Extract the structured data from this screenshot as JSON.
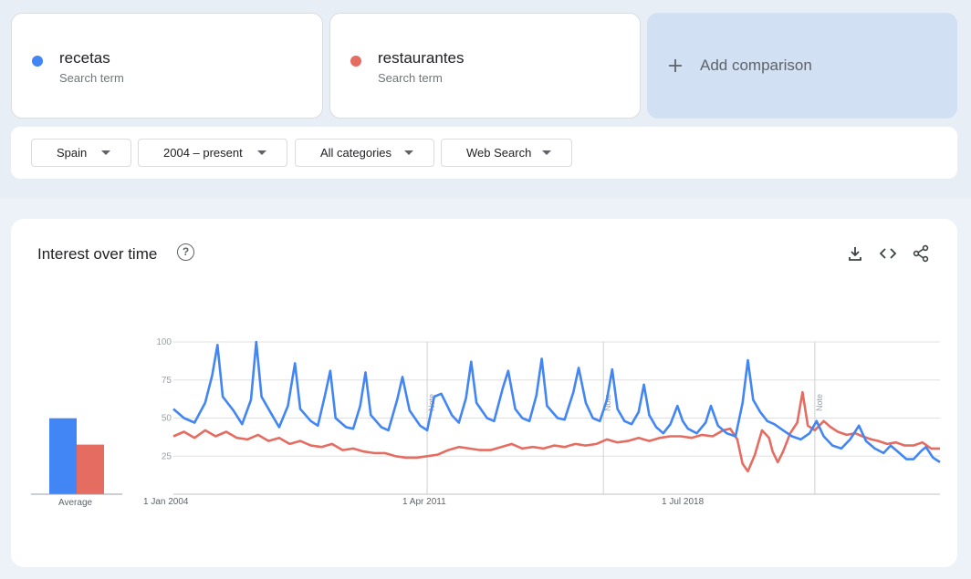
{
  "terms": [
    {
      "name": "recetas",
      "subtitle": "Search term",
      "color": "#4285f4"
    },
    {
      "name": "restaurantes",
      "subtitle": "Search term",
      "color": "#e56c61"
    }
  ],
  "add_comparison": {
    "icon": "plus-icon",
    "label": "Add comparison"
  },
  "filters": {
    "region": "Spain",
    "time_range": "2004 – present",
    "category": "All categories",
    "search_type": "Web Search"
  },
  "panel": {
    "title": "Interest over time",
    "icons": [
      "help-icon",
      "download-icon",
      "embed-code-icon",
      "share-icon"
    ],
    "average_label": "Average",
    "note_label": "Note"
  },
  "chart_data": {
    "type": "line",
    "title": "Interest over time",
    "xlabel": "",
    "ylabel": "",
    "ylim": [
      0,
      100
    ],
    "yticks": [
      25,
      50,
      75,
      100
    ],
    "xlim": [
      2004.0,
      2025.75
    ],
    "xtick_labels": [
      "1 Jan 2004",
      "1 Apr 2011",
      "1 Jul 2018"
    ],
    "xtick_positions": [
      2004.0,
      2011.25,
      2018.5
    ],
    "note_markers": [
      2011.2,
      2016.2,
      2022.2
    ],
    "grid": true,
    "legend": "none",
    "averages": [
      {
        "name": "recetas",
        "value": 49
      },
      {
        "name": "restaurantes",
        "value": 32
      }
    ],
    "series": [
      {
        "name": "recetas",
        "color": "#4285f4",
        "points": [
          [
            2004.0,
            56
          ],
          [
            2004.3,
            50
          ],
          [
            2004.6,
            47
          ],
          [
            2004.9,
            60
          ],
          [
            2005.1,
            78
          ],
          [
            2005.25,
            98
          ],
          [
            2005.4,
            64
          ],
          [
            2005.7,
            55
          ],
          [
            2005.95,
            46
          ],
          [
            2006.2,
            62
          ],
          [
            2006.35,
            100
          ],
          [
            2006.5,
            64
          ],
          [
            2006.8,
            52
          ],
          [
            2007.0,
            44
          ],
          [
            2007.25,
            58
          ],
          [
            2007.45,
            86
          ],
          [
            2007.6,
            56
          ],
          [
            2007.9,
            48
          ],
          [
            2008.1,
            45
          ],
          [
            2008.3,
            65
          ],
          [
            2008.45,
            81
          ],
          [
            2008.6,
            50
          ],
          [
            2008.9,
            44
          ],
          [
            2009.1,
            43
          ],
          [
            2009.3,
            58
          ],
          [
            2009.45,
            80
          ],
          [
            2009.6,
            52
          ],
          [
            2009.9,
            44
          ],
          [
            2010.1,
            42
          ],
          [
            2010.35,
            62
          ],
          [
            2010.5,
            77
          ],
          [
            2010.7,
            55
          ],
          [
            2011.0,
            45
          ],
          [
            2011.2,
            42
          ],
          [
            2011.4,
            64
          ],
          [
            2011.6,
            66
          ],
          [
            2011.9,
            52
          ],
          [
            2012.1,
            47
          ],
          [
            2012.3,
            63
          ],
          [
            2012.45,
            87
          ],
          [
            2012.6,
            60
          ],
          [
            2012.9,
            50
          ],
          [
            2013.1,
            48
          ],
          [
            2013.35,
            70
          ],
          [
            2013.5,
            81
          ],
          [
            2013.7,
            56
          ],
          [
            2013.9,
            50
          ],
          [
            2014.1,
            48
          ],
          [
            2014.3,
            65
          ],
          [
            2014.45,
            89
          ],
          [
            2014.6,
            58
          ],
          [
            2014.9,
            50
          ],
          [
            2015.1,
            49
          ],
          [
            2015.35,
            67
          ],
          [
            2015.5,
            83
          ],
          [
            2015.7,
            60
          ],
          [
            2015.9,
            50
          ],
          [
            2016.1,
            48
          ],
          [
            2016.3,
            62
          ],
          [
            2016.45,
            82
          ],
          [
            2016.6,
            56
          ],
          [
            2016.8,
            48
          ],
          [
            2017.0,
            46
          ],
          [
            2017.2,
            54
          ],
          [
            2017.35,
            72
          ],
          [
            2017.5,
            52
          ],
          [
            2017.7,
            44
          ],
          [
            2017.9,
            40
          ],
          [
            2018.1,
            46
          ],
          [
            2018.3,
            58
          ],
          [
            2018.45,
            48
          ],
          [
            2018.6,
            43
          ],
          [
            2018.85,
            40
          ],
          [
            2019.1,
            47
          ],
          [
            2019.25,
            58
          ],
          [
            2019.45,
            45
          ],
          [
            2019.7,
            40
          ],
          [
            2019.95,
            38
          ],
          [
            2020.15,
            60
          ],
          [
            2020.3,
            88
          ],
          [
            2020.45,
            62
          ],
          [
            2020.65,
            54
          ],
          [
            2020.85,
            48
          ],
          [
            2021.05,
            46
          ],
          [
            2021.3,
            42
          ],
          [
            2021.55,
            38
          ],
          [
            2021.8,
            36
          ],
          [
            2022.05,
            40
          ],
          [
            2022.25,
            48
          ],
          [
            2022.45,
            38
          ],
          [
            2022.7,
            32
          ],
          [
            2022.95,
            30
          ],
          [
            2023.2,
            36
          ],
          [
            2023.45,
            45
          ],
          [
            2023.65,
            35
          ],
          [
            2023.9,
            30
          ],
          [
            2024.15,
            27
          ],
          [
            2024.35,
            32
          ],
          [
            2024.55,
            28
          ],
          [
            2024.8,
            23
          ],
          [
            2025.0,
            23
          ],
          [
            2025.2,
            28
          ],
          [
            2025.35,
            31
          ],
          [
            2025.55,
            24
          ],
          [
            2025.75,
            21
          ]
        ]
      },
      {
        "name": "restaurantes",
        "color": "#e56c61",
        "points": [
          [
            2004.0,
            38
          ],
          [
            2004.3,
            41
          ],
          [
            2004.6,
            37
          ],
          [
            2004.9,
            42
          ],
          [
            2005.2,
            38
          ],
          [
            2005.5,
            41
          ],
          [
            2005.8,
            37
          ],
          [
            2006.1,
            36
          ],
          [
            2006.4,
            39
          ],
          [
            2006.7,
            35
          ],
          [
            2007.0,
            37
          ],
          [
            2007.3,
            33
          ],
          [
            2007.6,
            35
          ],
          [
            2007.9,
            32
          ],
          [
            2008.2,
            31
          ],
          [
            2008.5,
            33
          ],
          [
            2008.8,
            29
          ],
          [
            2009.1,
            30
          ],
          [
            2009.4,
            28
          ],
          [
            2009.7,
            27
          ],
          [
            2010.0,
            27
          ],
          [
            2010.3,
            25
          ],
          [
            2010.6,
            24
          ],
          [
            2010.9,
            24
          ],
          [
            2011.2,
            25
          ],
          [
            2011.5,
            26
          ],
          [
            2011.8,
            29
          ],
          [
            2012.1,
            31
          ],
          [
            2012.4,
            30
          ],
          [
            2012.7,
            29
          ],
          [
            2013.0,
            29
          ],
          [
            2013.3,
            31
          ],
          [
            2013.6,
            33
          ],
          [
            2013.9,
            30
          ],
          [
            2014.2,
            31
          ],
          [
            2014.5,
            30
          ],
          [
            2014.8,
            32
          ],
          [
            2015.1,
            31
          ],
          [
            2015.4,
            33
          ],
          [
            2015.7,
            32
          ],
          [
            2016.0,
            33
          ],
          [
            2016.3,
            36
          ],
          [
            2016.6,
            34
          ],
          [
            2016.9,
            35
          ],
          [
            2017.2,
            37
          ],
          [
            2017.5,
            35
          ],
          [
            2017.8,
            37
          ],
          [
            2018.1,
            38
          ],
          [
            2018.4,
            38
          ],
          [
            2018.7,
            37
          ],
          [
            2019.0,
            39
          ],
          [
            2019.3,
            38
          ],
          [
            2019.6,
            42
          ],
          [
            2019.8,
            43
          ],
          [
            2020.0,
            36
          ],
          [
            2020.15,
            20
          ],
          [
            2020.3,
            15
          ],
          [
            2020.5,
            26
          ],
          [
            2020.7,
            42
          ],
          [
            2020.9,
            37
          ],
          [
            2021.0,
            28
          ],
          [
            2021.15,
            21
          ],
          [
            2021.3,
            28
          ],
          [
            2021.5,
            40
          ],
          [
            2021.7,
            47
          ],
          [
            2021.85,
            67
          ],
          [
            2022.0,
            45
          ],
          [
            2022.2,
            42
          ],
          [
            2022.45,
            48
          ],
          [
            2022.65,
            44
          ],
          [
            2022.85,
            41
          ],
          [
            2023.1,
            39
          ],
          [
            2023.35,
            40
          ],
          [
            2023.55,
            38
          ],
          [
            2023.8,
            36
          ],
          [
            2024.0,
            35
          ],
          [
            2024.25,
            33
          ],
          [
            2024.5,
            34
          ],
          [
            2024.75,
            32
          ],
          [
            2025.0,
            32
          ],
          [
            2025.25,
            34
          ],
          [
            2025.5,
            30
          ],
          [
            2025.75,
            30
          ]
        ]
      }
    ]
  }
}
